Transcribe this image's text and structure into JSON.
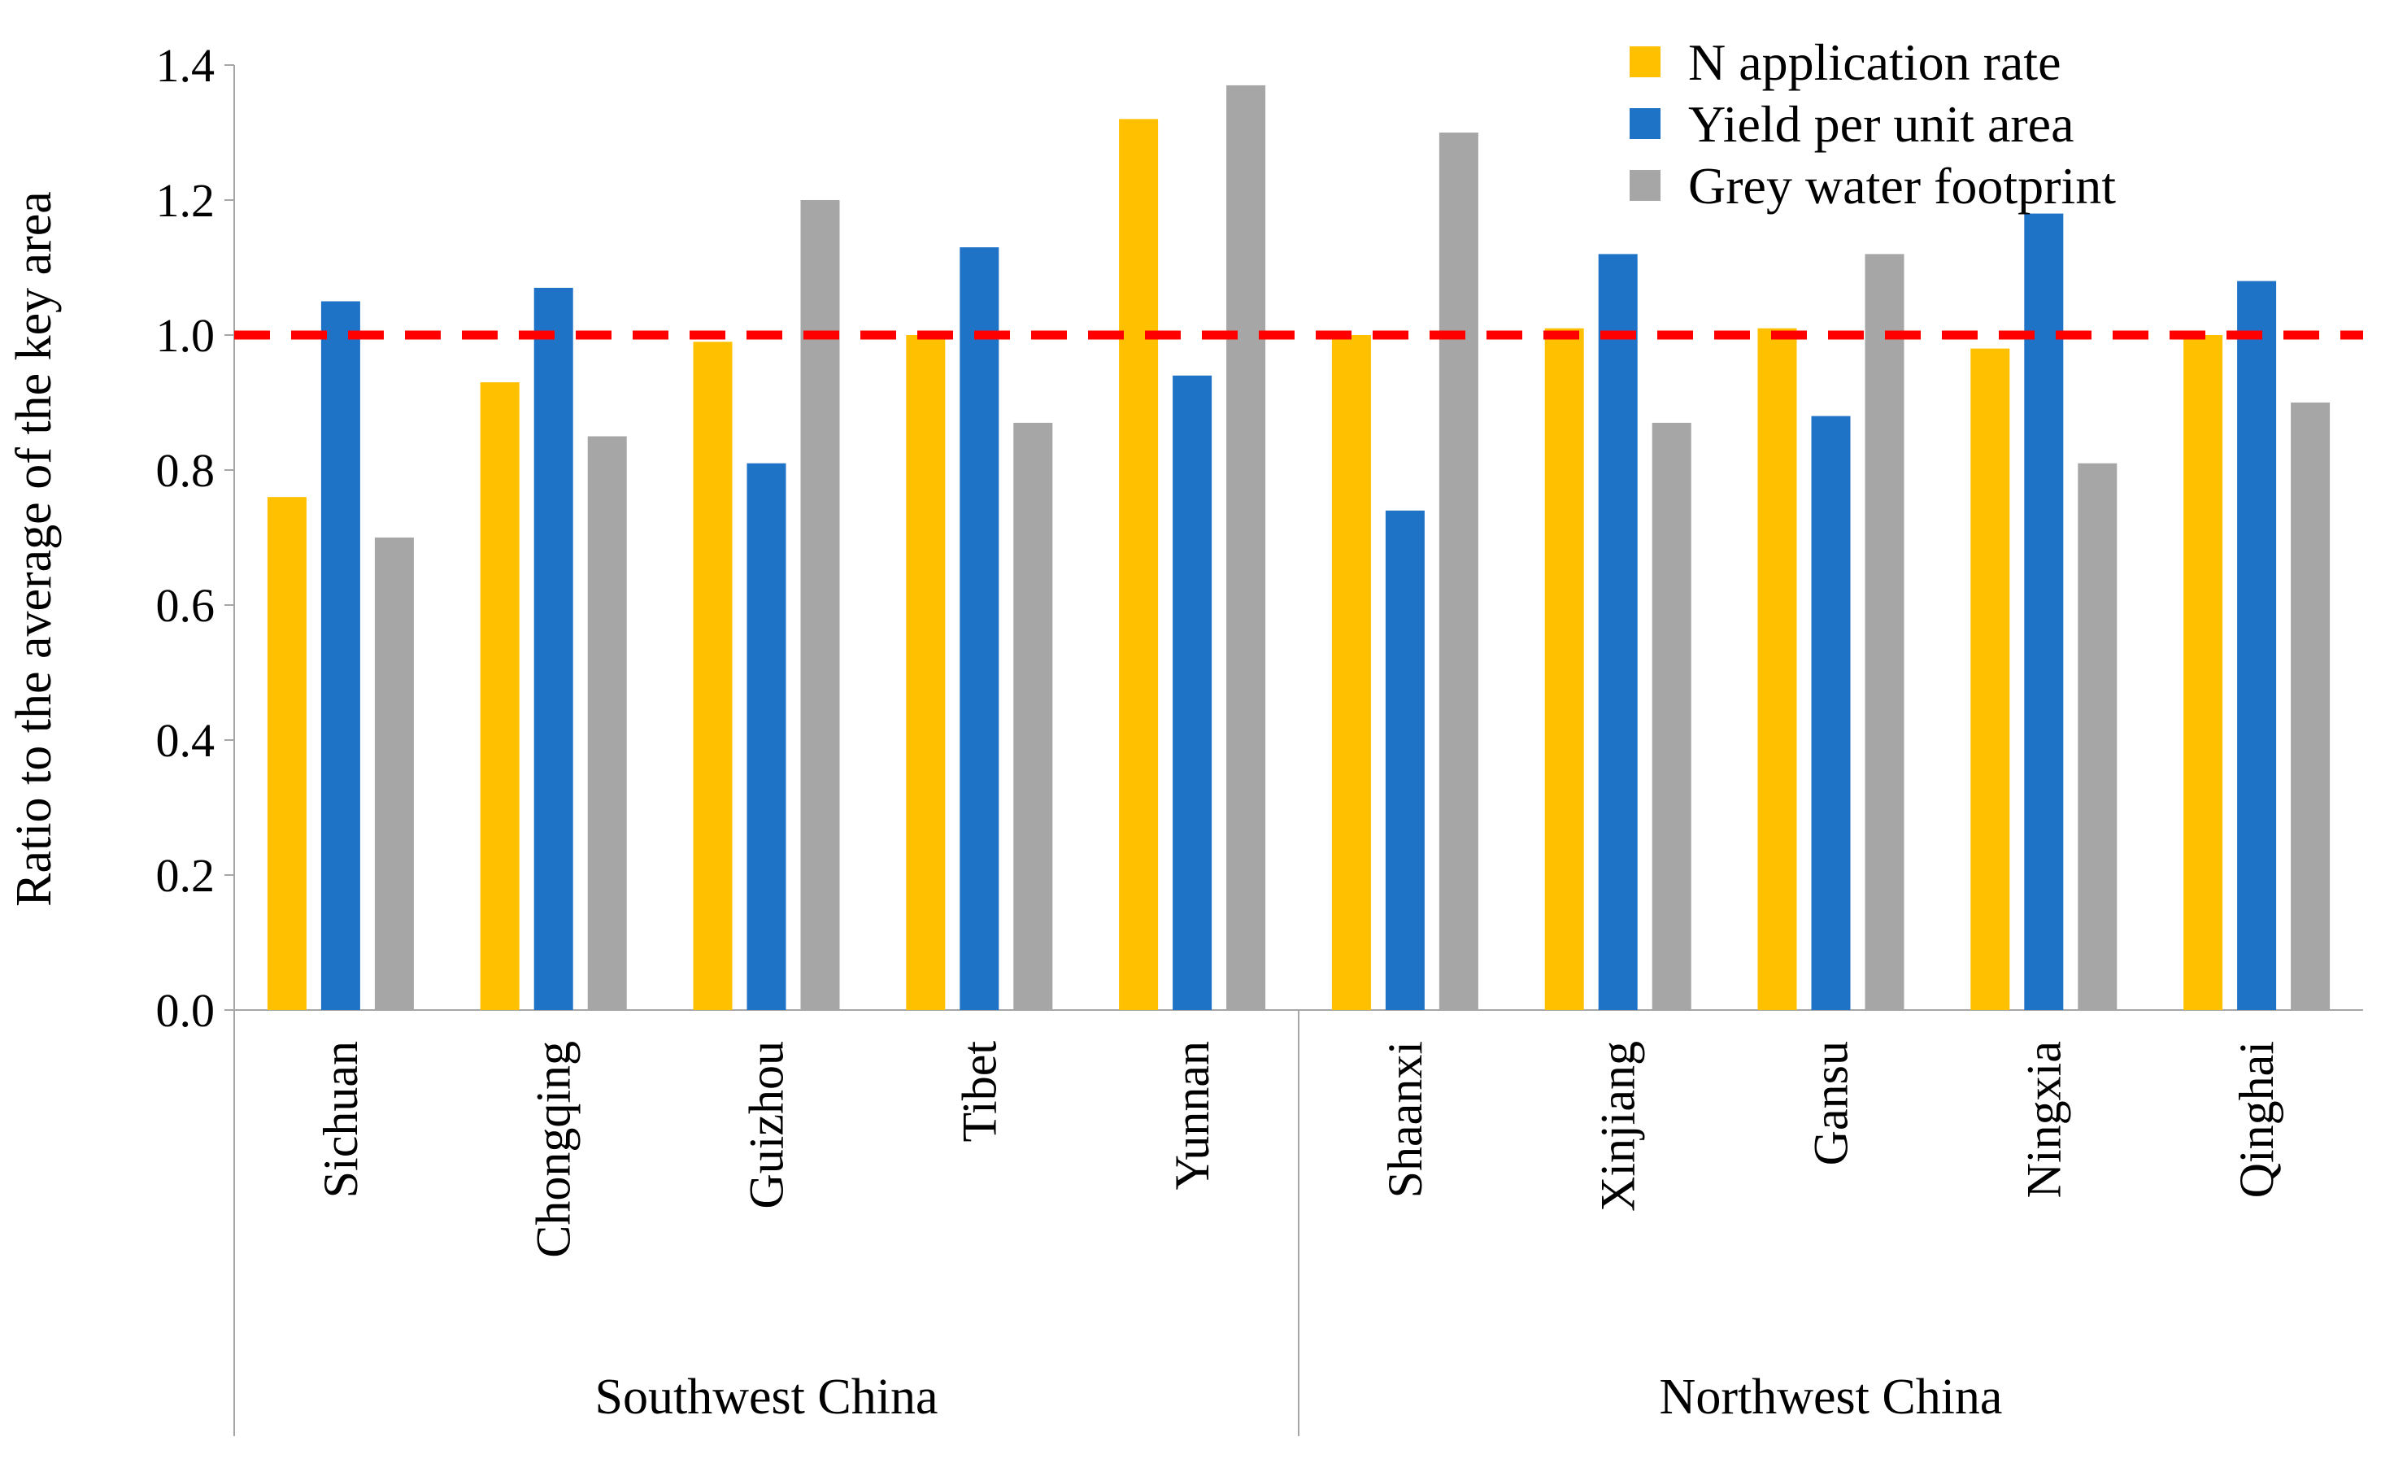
{
  "chart_data": {
    "type": "bar",
    "ylabel": "Ratio to the average of the key area",
    "ylim": [
      0,
      1.4
    ],
    "yticks": [
      "0.0",
      "0.2",
      "0.4",
      "0.6",
      "0.8",
      "1.0",
      "1.2",
      "1.4"
    ],
    "yticks_values": [
      0,
      0.2,
      0.4,
      0.6,
      0.8,
      1.0,
      1.2,
      1.4
    ],
    "categories": [
      "Sichuan",
      "Chongqing",
      "Guizhou",
      "Tibet",
      "Yunnan",
      "Shaanxi",
      "Xinjiang",
      "Gansu",
      "Ningxia",
      "Qinghai"
    ],
    "groups": [
      {
        "name": "Southwest China",
        "categories": [
          "Sichuan",
          "Chongqing",
          "Guizhou",
          "Tibet",
          "Yunnan"
        ]
      },
      {
        "name": "Northwest China",
        "categories": [
          "Shaanxi",
          "Xinjiang",
          "Gansu",
          "Ningxia",
          "Qinghai"
        ]
      }
    ],
    "series": [
      {
        "name": "N application rate",
        "color": "#FFC000",
        "values": [
          0.76,
          0.93,
          0.99,
          1.0,
          1.32,
          1.0,
          1.01,
          1.01,
          0.98,
          1.0
        ]
      },
      {
        "name": "Yield per unit area",
        "color": "#1F73C7",
        "values": [
          1.05,
          1.07,
          0.81,
          1.13,
          0.94,
          0.74,
          1.12,
          0.88,
          1.18,
          1.08
        ]
      },
      {
        "name": "Grey water footprint",
        "color": "#A6A6A6",
        "values": [
          0.7,
          0.85,
          1.2,
          0.87,
          1.37,
          1.3,
          0.87,
          1.12,
          0.81,
          0.9
        ]
      }
    ],
    "reference_line": {
      "value": 1.0,
      "color": "#FF0000",
      "style": "dashed"
    },
    "legend_position": "top-right"
  }
}
